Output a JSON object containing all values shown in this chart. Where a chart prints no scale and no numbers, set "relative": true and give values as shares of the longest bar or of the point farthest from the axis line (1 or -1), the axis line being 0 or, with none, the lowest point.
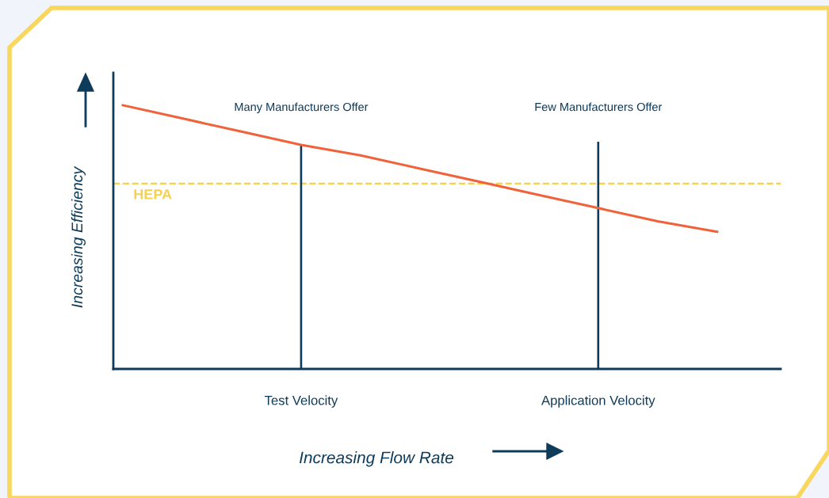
{
  "chart_data": {
    "type": "line",
    "relative": true,
    "xlabel": "Increasing Flow Rate",
    "ylabel": "Increasing Efficiency",
    "categories": [
      null,
      null,
      null,
      "Test Velocity",
      null,
      null,
      null,
      null,
      "Application Velocity",
      null,
      null
    ],
    "series": [
      {
        "color": "#f0623a",
        "values": [
          1,
          0.95,
          0.9,
          0.85,
          0.81,
          0.76,
          0.71,
          0.66,
          0.61,
          0.56,
          0.52
        ]
      },
      {
        "type": "bar",
        "color": "#0e3b5a",
        "values": [
          null,
          null,
          null,
          0.853,
          null,
          null,
          null,
          null,
          0.862,
          null,
          null
        ]
      }
    ],
    "ref_lines": [
      {
        "axis": "y",
        "value": 0.703,
        "label": "HEPA",
        "color": "#f7d04f",
        "line_style": "dashed"
      }
    ],
    "annotations": [
      "Many Manufacturers Offer",
      "Few Manufacturers Offer"
    ],
    "legend": false,
    "grid": false,
    "marker": "none",
    "line_style": "solid"
  }
}
